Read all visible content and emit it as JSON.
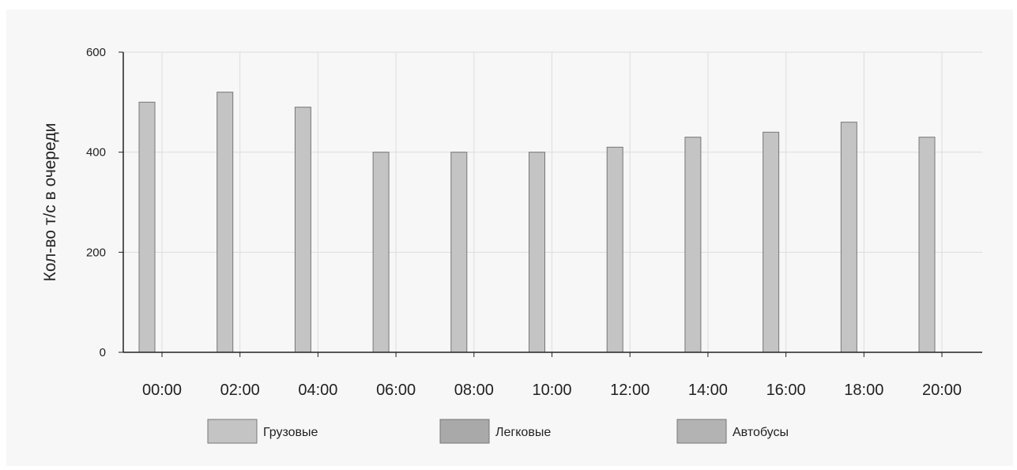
{
  "chart_data": {
    "type": "bar",
    "ylabel": "Кол-во т/с в очереди",
    "xlabel": "",
    "title": "",
    "ylim": [
      0,
      600
    ],
    "yticks": [
      0,
      200,
      400,
      600
    ],
    "categories": [
      "00:00",
      "02:00",
      "04:00",
      "06:00",
      "08:00",
      "10:00",
      "12:00",
      "14:00",
      "16:00",
      "18:00",
      "20:00"
    ],
    "grid": true,
    "legend_position": "bottom",
    "series": [
      {
        "name": "Грузовые",
        "color": "#c4c4c4",
        "values": [
          500,
          520,
          490,
          400,
          400,
          400,
          410,
          430,
          440,
          460,
          430
        ]
      },
      {
        "name": "Легковые",
        "color": "#a9a9a9",
        "values": [
          0,
          0,
          0,
          0,
          0,
          0,
          0,
          0,
          0,
          0,
          0
        ]
      },
      {
        "name": "Автобусы",
        "color": "#b3b3b3",
        "values": [
          0,
          0,
          0,
          0,
          0,
          0,
          0,
          0,
          0,
          0,
          0
        ]
      }
    ]
  }
}
